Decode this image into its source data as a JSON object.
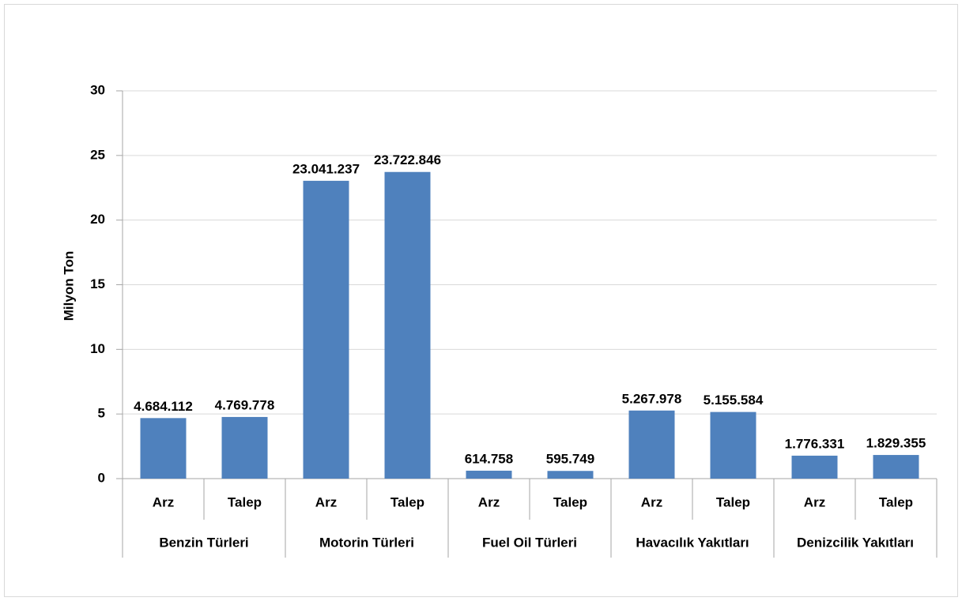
{
  "chart_data": {
    "type": "bar",
    "y_axis_label": "Milyon Ton",
    "categories": [
      "Arz",
      "Talep",
      "Arz",
      "Talep",
      "Arz",
      "Talep",
      "Arz",
      "Talep",
      "Arz",
      "Talep"
    ],
    "groups": [
      "Benzin Türleri",
      "Motorin Türleri",
      "Fuel Oil Türleri",
      "Havacılık Yakıtları",
      "Denizcilik Yakıtları"
    ],
    "values": [
      4.684112,
      4.769778,
      23.041237,
      23.722846,
      0.614758,
      0.595749,
      5.267978,
      5.155584,
      1.776331,
      1.829355
    ],
    "value_labels": [
      "4.684.112",
      "4.769.778",
      "23.041.237",
      "23.722.846",
      "614.758",
      "595.749",
      "5.267.978",
      "5.155.584",
      "1.776.331",
      "1.829.355"
    ],
    "color": "#4f81bd",
    "ylim": [
      0,
      30
    ],
    "yticks": [
      0,
      5,
      10,
      15,
      20,
      25,
      30
    ],
    "grid": true
  }
}
